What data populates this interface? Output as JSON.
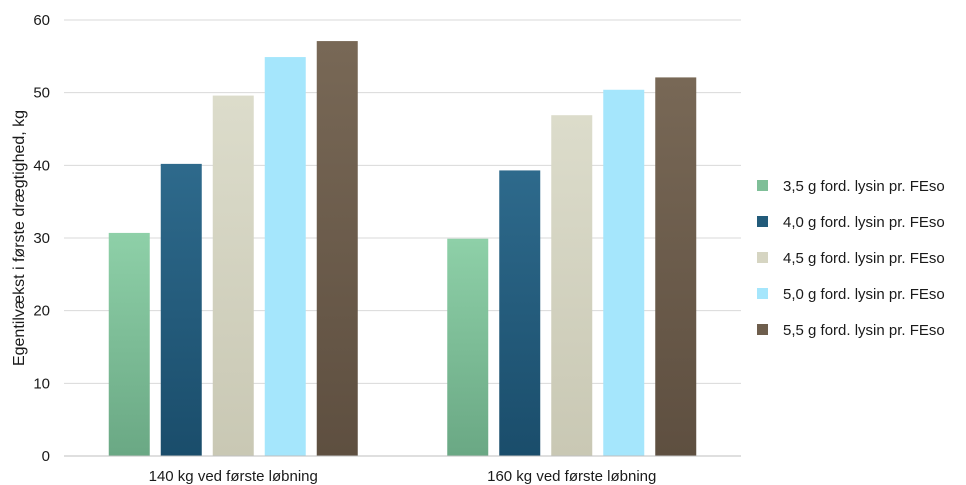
{
  "chart_data": {
    "type": "bar",
    "title": "",
    "xlabel": "",
    "ylabel": "Egentilvækst i første drægtighed, kg",
    "ylim": [
      0,
      60
    ],
    "yticks": [
      0,
      10,
      20,
      30,
      40,
      50,
      60
    ],
    "grid": true,
    "legend_position": "right",
    "categories": [
      "140 kg ved første løbning",
      "160 kg ved første løbning"
    ],
    "series": [
      {
        "name": "3,5 g ford. lysin pr. FEso",
        "values": [
          30.7,
          29.9
        ],
        "color": "#7fbf98"
      },
      {
        "name": "4,0 g ford. lysin pr. FEso",
        "values": [
          40.2,
          39.3
        ],
        "color": "#225b7a"
      },
      {
        "name": "4,5 g ford. lysin pr. FEso",
        "values": [
          49.6,
          46.9
        ],
        "color": "#d6d5c2"
      },
      {
        "name": "5,0 g ford. lysin pr. FEso",
        "values": [
          54.9,
          50.4
        ],
        "color": "#a5e6fc"
      },
      {
        "name": "5,5 g ford. lysin pr. FEso",
        "values": [
          57.1,
          52.1
        ],
        "color": "#6e5e4d"
      }
    ]
  }
}
